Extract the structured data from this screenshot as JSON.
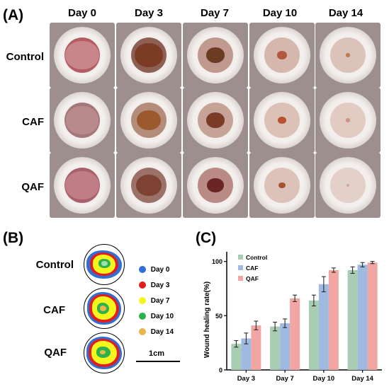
{
  "panels": {
    "a_label": "(A)",
    "b_label": "(B)",
    "c_label": "(C)"
  },
  "photo_grid": {
    "columns": [
      "Day 0",
      "Day 3",
      "Day 7",
      "Day 10",
      "Day 14"
    ],
    "rows": [
      "Control",
      "CAF",
      "QAF"
    ]
  },
  "traces": {
    "rows": [
      "Control",
      "CAF",
      "QAF"
    ],
    "legend": [
      {
        "label": "Day 0",
        "color": "#2f6fd6"
      },
      {
        "label": "Day 3",
        "color": "#e01e1e"
      },
      {
        "label": "Day 7",
        "color": "#f5f51e"
      },
      {
        "label": "Day 10",
        "color": "#2bb24c"
      },
      {
        "label": "Day 14",
        "color": "#e8b64a"
      }
    ],
    "scale_bar": "1cm"
  },
  "chart_data": {
    "type": "bar",
    "ylabel": "Wound healing rate(%)",
    "xlabel": "",
    "categories": [
      "Day 3",
      "Day 7",
      "Day 10",
      "Day 14"
    ],
    "ylim": [
      0,
      105
    ],
    "yticks": [
      0,
      50,
      100
    ],
    "legend_position": "top-left",
    "series": [
      {
        "name": "Control",
        "color": "#a9cdb2",
        "values": [
          24,
          40,
          64,
          92
        ],
        "errors": [
          3,
          4,
          5,
          3
        ]
      },
      {
        "name": "CAF",
        "color": "#9fb9e0",
        "values": [
          29,
          43,
          79,
          97
        ],
        "errors": [
          5,
          4,
          7,
          2
        ]
      },
      {
        "name": "QAF",
        "color": "#f1a6a3",
        "values": [
          41,
          66,
          92,
          99
        ],
        "errors": [
          4,
          3,
          2,
          1
        ]
      }
    ]
  }
}
